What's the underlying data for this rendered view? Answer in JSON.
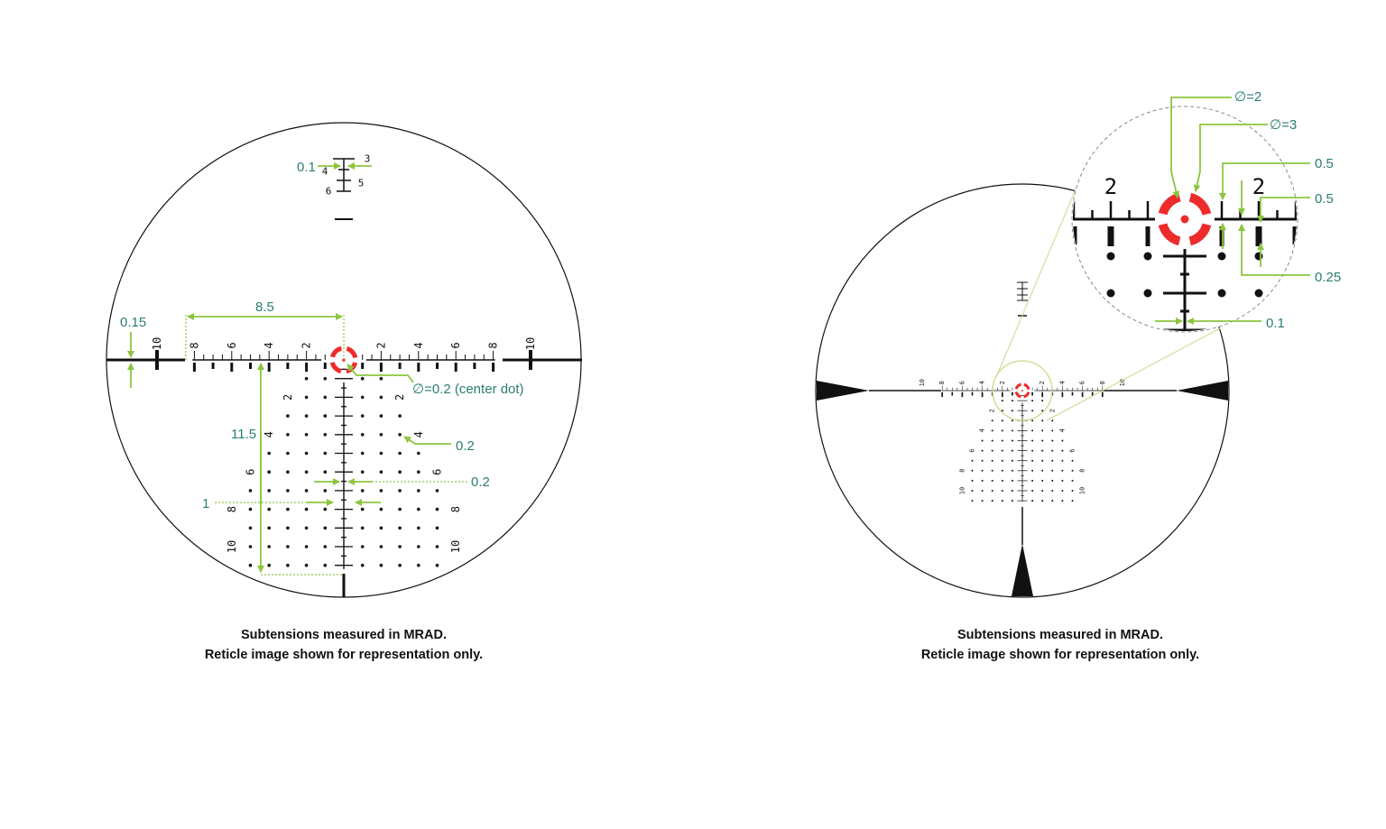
{
  "colors": {
    "reticle": "#111111",
    "aim_point": "#ee2b2b",
    "annotation_line": "#8cc63f",
    "annotation_text": "#2c7d74",
    "inset_outline": "#8a8a8a"
  },
  "left_reticle": {
    "horizontal_labels": [
      "8",
      "6",
      "4",
      "2",
      "2",
      "4",
      "6",
      "8"
    ],
    "outer_labels": [
      "10",
      "10"
    ],
    "grid_row_labels": [
      "2",
      "4",
      "6",
      "8",
      "10"
    ],
    "stadia_labels": [
      "3",
      "4",
      "5",
      "6"
    ],
    "annotations": {
      "stadia_width": "0.1",
      "post_thickness": "0.15",
      "half_width": "8.5",
      "center_dot": "∅=0.2 (center dot)",
      "drop_depth": "11.5",
      "dot_size": "0.2",
      "bar_gap": "0.2",
      "bar_width": "1"
    },
    "caption": [
      "Subtensions measured in MRAD.",
      "Reticle image shown for representation only."
    ]
  },
  "right_reticle": {
    "horizontal_labels": [
      "10",
      "8",
      "6",
      "4",
      "2",
      "2",
      "4",
      "6",
      "8",
      "10"
    ],
    "grid_row_labels": [
      "2",
      "4",
      "6",
      "8",
      "10"
    ],
    "inset_labels": [
      "2",
      "2"
    ],
    "annotations": {
      "inner_ring": "∅=2",
      "outer_ring": "∅=3",
      "major_tick": "0.5",
      "bar_length": "0.5",
      "minor_tick": "0.25",
      "line_width": "0.1"
    },
    "caption": [
      "Subtensions measured in MRAD.",
      "Reticle image shown for representation only."
    ]
  }
}
